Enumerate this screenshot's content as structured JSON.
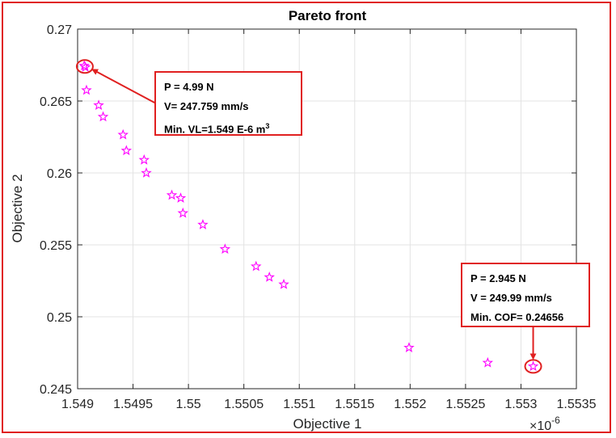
{
  "chart_data": {
    "type": "scatter",
    "title": "Pareto front",
    "xlabel": "Objective 1",
    "ylabel": "Objective 2",
    "x_multiplier_label": "×10",
    "x_multiplier_exponent": "-6",
    "xlim": [
      1.549,
      1.5535
    ],
    "ylim": [
      0.245,
      0.27
    ],
    "xticks": [
      1.549,
      1.5495,
      1.55,
      1.5505,
      1.551,
      1.5515,
      1.552,
      1.5525,
      1.553,
      1.5535
    ],
    "xtick_labels": [
      "1.549",
      "1.5495",
      "1.55",
      "1.5505",
      "1.551",
      "1.5515",
      "1.552",
      "1.5525",
      "1.553",
      "1.5535"
    ],
    "yticks": [
      0.245,
      0.25,
      0.255,
      0.26,
      0.265,
      0.27
    ],
    "ytick_labels": [
      "0.245",
      "0.25",
      "0.255",
      "0.26",
      "0.265",
      "0.27"
    ],
    "grid": true,
    "marker": "pentagram",
    "marker_color": "#ff00ff",
    "series": [
      {
        "points": [
          {
            "x": 1.54906,
            "y": 0.26745
          },
          {
            "x": 1.54907,
            "y": 0.26735
          },
          {
            "x": 1.54908,
            "y": 0.26575
          },
          {
            "x": 1.54919,
            "y": 0.2647
          },
          {
            "x": 1.54923,
            "y": 0.2639
          },
          {
            "x": 1.54941,
            "y": 0.26265
          },
          {
            "x": 1.54944,
            "y": 0.26155
          },
          {
            "x": 1.5496,
            "y": 0.2609
          },
          {
            "x": 1.54962,
            "y": 0.26
          },
          {
            "x": 1.54985,
            "y": 0.25845
          },
          {
            "x": 1.54993,
            "y": 0.25825
          },
          {
            "x": 1.54995,
            "y": 0.2572
          },
          {
            "x": 1.55013,
            "y": 0.2564
          },
          {
            "x": 1.55033,
            "y": 0.2547
          },
          {
            "x": 1.55061,
            "y": 0.2535
          },
          {
            "x": 1.55073,
            "y": 0.25275
          },
          {
            "x": 1.55086,
            "y": 0.25225
          },
          {
            "x": 1.55199,
            "y": 0.24785
          },
          {
            "x": 1.5527,
            "y": 0.2468
          },
          {
            "x": 1.55311,
            "y": 0.24655
          }
        ]
      }
    ],
    "annotations": [
      {
        "lines": [
          "P =  4.99 N",
          "V=  247.759 mm/s",
          "Min. VL=1.549 E-6 m"
        ],
        "superscript": "3",
        "target": {
          "x": 1.549065,
          "y": 0.2674
        }
      },
      {
        "lines": [
          "P =  2.945 N",
          "V =  249.99 mm/s",
          "Min. COF= 0.24656"
        ],
        "target": {
          "x": 1.55311,
          "y": 0.24655
        }
      }
    ],
    "accent_color": "#e02020"
  }
}
